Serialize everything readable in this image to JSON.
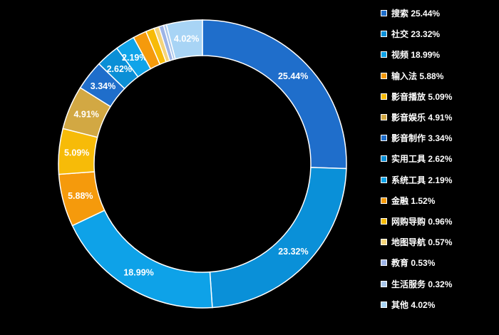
{
  "chart_data": {
    "type": "pie",
    "donut": true,
    "legend_position": "right",
    "slices": [
      {
        "label": "25.44%",
        "value": 25.44,
        "legend": "搜索 25.44%",
        "color": "#1f6ecb"
      },
      {
        "label": "23.32%",
        "value": 23.32,
        "legend": "社交 23.32%",
        "color": "#0a90d8"
      },
      {
        "label": "18.99%",
        "value": 18.99,
        "legend": "视频 18.99%",
        "color": "#0ea2e8"
      },
      {
        "label": "5.88%",
        "value": 5.88,
        "legend": "输入法 5.88%",
        "color": "#f59a0c"
      },
      {
        "label": "5.09%",
        "value": 5.09,
        "legend": "影音播放 5.09%",
        "color": "#f7bb08"
      },
      {
        "label": "4.91%",
        "value": 4.91,
        "legend": "影音娱乐 4.91%",
        "color": "#d2a843"
      },
      {
        "label": "3.34%",
        "value": 3.34,
        "legend": "影音制作 3.34%",
        "color": "#1f6ecb"
      },
      {
        "label": "2.62%",
        "value": 2.62,
        "legend": "实用工具 2.62%",
        "color": "#0b8fd6"
      },
      {
        "label": "2.19%",
        "value": 2.19,
        "legend": "系统工具 2.19%",
        "color": "#10a4e9"
      },
      {
        "label": "",
        "value": 1.52,
        "legend": "金融 1.52%",
        "color": "#f59a0c"
      },
      {
        "label": "",
        "value": 0.96,
        "legend": "网购导购 0.96%",
        "color": "#f7bb08"
      },
      {
        "label": "",
        "value": 0.57,
        "legend": "地图导航 0.57%",
        "color": "#f5d47a"
      },
      {
        "label": "",
        "value": 0.53,
        "legend": "教育 0.53%",
        "color": "#9db4e6"
      },
      {
        "label": "",
        "value": 0.32,
        "legend": "生活服务 0.32%",
        "color": "#a9c6ea"
      },
      {
        "label": "4.02%",
        "value": 4.02,
        "legend": "其他 4.02%",
        "color": "#a8d4f5"
      }
    ]
  }
}
